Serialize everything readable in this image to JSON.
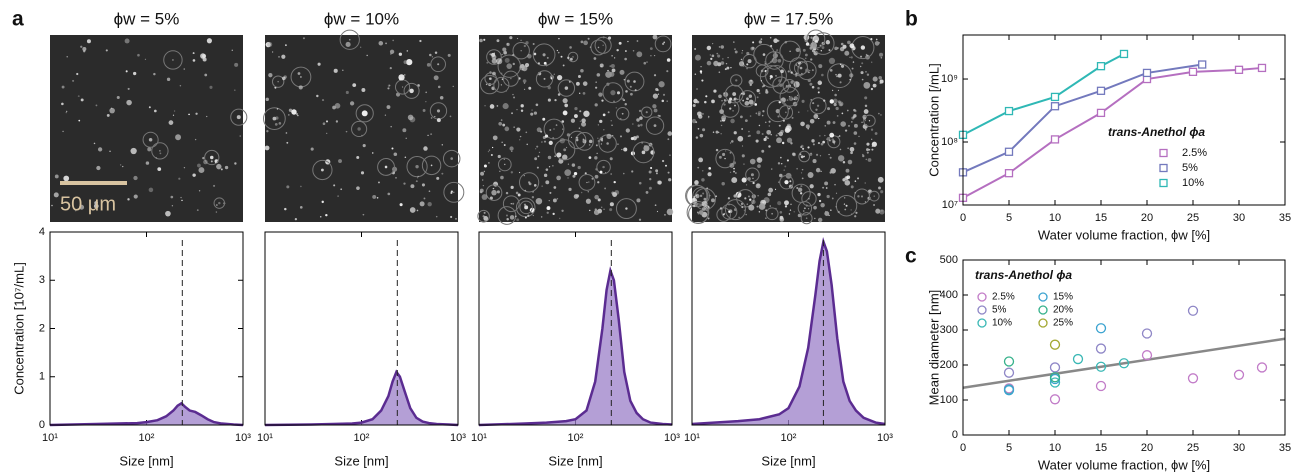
{
  "panel_labels": [
    "a",
    "b",
    "c"
  ],
  "micrographs": [
    {
      "title": "ϕw = 5%"
    },
    {
      "title": "ϕw = 10%"
    },
    {
      "title": "ϕw = 15%"
    },
    {
      "title": "ϕw = 17.5%"
    }
  ],
  "scale_bar": "50 μm",
  "chart_data": [
    {
      "type": "area",
      "log_x": true,
      "x": [
        10,
        30,
        50,
        80,
        100,
        130,
        160,
        190,
        210,
        230,
        250,
        280,
        320,
        370,
        430,
        500,
        600,
        800,
        1000
      ],
      "series": [
        {
          "color": "#5b2c91",
          "values": [
            0,
            0.02,
            0.03,
            0.04,
            0.06,
            0.1,
            0.18,
            0.3,
            0.4,
            0.45,
            0.38,
            0.3,
            0.27,
            0.2,
            0.12,
            0.06,
            0.03,
            0.01,
            0
          ]
        }
      ],
      "mean": 235,
      "xlim": [
        10,
        1000
      ],
      "xticks": [
        {
          "value": 10,
          "label": "10¹"
        },
        {
          "value": 100,
          "label": "10²"
        },
        {
          "value": 1000,
          "label": "10³"
        }
      ],
      "ylim": [
        0,
        4
      ],
      "yticks": [
        0,
        1,
        2,
        3,
        4
      ],
      "x_label": "Size [nm]",
      "y_label": "Concentration [10⁷/mL]"
    },
    {
      "type": "area",
      "log_x": true,
      "x": [
        10,
        30,
        50,
        80,
        100,
        130,
        160,
        190,
        210,
        230,
        250,
        280,
        320,
        370,
        430,
        500,
        600,
        800,
        1000
      ],
      "series": [
        {
          "color": "#5b2c91",
          "values": [
            0,
            0.01,
            0.02,
            0.03,
            0.05,
            0.12,
            0.3,
            0.6,
            0.9,
            1.1,
            1.0,
            0.7,
            0.35,
            0.15,
            0.07,
            0.04,
            0.02,
            0.01,
            0
          ]
        }
      ],
      "mean": 235,
      "xlim": [
        10,
        1000
      ],
      "xticks": [
        {
          "value": 10,
          "label": "10¹"
        },
        {
          "value": 100,
          "label": "10²"
        },
        {
          "value": 1000,
          "label": "10³"
        }
      ],
      "ylim": [
        0,
        4
      ],
      "x_label": "Size [nm]"
    },
    {
      "type": "area",
      "log_x": true,
      "x": [
        10,
        30,
        50,
        80,
        100,
        130,
        160,
        190,
        210,
        230,
        250,
        280,
        320,
        370,
        430,
        500,
        600,
        800,
        1000
      ],
      "series": [
        {
          "color": "#5b2c91",
          "values": [
            0,
            0.03,
            0.05,
            0.08,
            0.12,
            0.3,
            0.9,
            2.0,
            2.8,
            3.2,
            3.0,
            2.2,
            1.1,
            0.5,
            0.25,
            0.12,
            0.05,
            0.02,
            0.01
          ]
        }
      ],
      "mean": 235,
      "xlim": [
        10,
        1000
      ],
      "xticks": [
        {
          "value": 10,
          "label": "10¹"
        },
        {
          "value": 100,
          "label": "10²"
        },
        {
          "value": 1000,
          "label": "10³"
        }
      ],
      "ylim": [
        0,
        4
      ],
      "x_label": "Size [nm]"
    },
    {
      "type": "area",
      "log_x": true,
      "x": [
        10,
        30,
        50,
        80,
        100,
        130,
        160,
        190,
        210,
        230,
        250,
        280,
        320,
        370,
        430,
        500,
        600,
        800,
        1000
      ],
      "series": [
        {
          "color": "#5b2c91",
          "values": [
            0.02,
            0.08,
            0.12,
            0.22,
            0.35,
            0.8,
            1.6,
            2.7,
            3.4,
            3.8,
            3.6,
            2.9,
            1.8,
            0.9,
            0.5,
            0.3,
            0.15,
            0.05,
            0.02
          ]
        }
      ],
      "mean": 230,
      "xlim": [
        10,
        1000
      ],
      "xticks": [
        {
          "value": 10,
          "label": "10¹"
        },
        {
          "value": 100,
          "label": "10²"
        },
        {
          "value": 1000,
          "label": "10³"
        }
      ],
      "ylim": [
        0,
        4
      ],
      "x_label": "Size [nm]"
    },
    {
      "type": "line",
      "log_y": true,
      "legend_title": "trans-Anethol ϕa",
      "legend": "right",
      "series": [
        {
          "name": "2.5%",
          "color": "#b56fc0",
          "x": [
            0,
            5,
            10,
            15,
            20,
            25,
            30,
            32.5
          ],
          "values": [
            13000000,
            32000000,
            110000000,
            290000000,
            1000000000,
            1300000000,
            1400000000,
            1500000000
          ]
        },
        {
          "name": "5%",
          "color": "#7379bd",
          "x": [
            0,
            5,
            10,
            15,
            20,
            26
          ],
          "values": [
            33000000,
            70000000,
            370000000,
            650000000,
            1250000000,
            1700000000
          ]
        },
        {
          "name": "10%",
          "color": "#2fb8b5",
          "x": [
            0,
            5,
            10,
            15,
            17.5
          ],
          "values": [
            130000000,
            310000000,
            520000000,
            1600000000,
            2500000000
          ]
        }
      ],
      "xlim": [
        0,
        35
      ],
      "xticks": [
        0,
        5,
        10,
        15,
        20,
        25,
        30,
        35
      ],
      "ylim": [
        10000000,
        5000000000
      ],
      "yticks": [
        {
          "value": 10000000,
          "label": "10⁷"
        },
        {
          "value": 100000000,
          "label": "10⁸"
        },
        {
          "value": 1000000000,
          "label": "10⁹"
        }
      ],
      "x_label": "Water volume fraction, ϕw [%]",
      "y_label": "Concentration [/mL]"
    },
    {
      "type": "scatter",
      "legend_title": "trans-Anethol ϕa",
      "legend": "upper-left",
      "series": [
        {
          "name": "2.5%",
          "color": "#c27cc8",
          "x": [
            5,
            10,
            15,
            20,
            25,
            30,
            32.5
          ],
          "values": [
            133,
            102,
            140,
            228,
            162,
            172,
            193
          ]
        },
        {
          "name": "5%",
          "color": "#8e86c6",
          "x": [
            5,
            10,
            15,
            20,
            25
          ],
          "values": [
            178,
            193,
            247,
            290,
            355
          ]
        },
        {
          "name": "10%",
          "color": "#3ab8b5",
          "x": [
            5,
            10,
            12.5,
            15,
            17.5
          ],
          "values": [
            130,
            150,
            217,
            195,
            205
          ]
        },
        {
          "name": "15%",
          "color": "#3ba3d0",
          "x": [
            5,
            10,
            15
          ],
          "values": [
            128,
            160,
            305
          ]
        },
        {
          "name": "20%",
          "color": "#34b18a",
          "x": [
            5,
            10
          ],
          "values": [
            210,
            165
          ]
        },
        {
          "name": "25%",
          "color": "#a3a832",
          "x": [
            10
          ],
          "values": [
            258
          ]
        }
      ],
      "xlim": [
        0,
        35
      ],
      "xticks": [
        0,
        5,
        10,
        15,
        20,
        25,
        30,
        35
      ],
      "ylim": [
        0,
        500
      ],
      "yticks": [
        0,
        100,
        200,
        300,
        400,
        500
      ],
      "x_label": "Water volume fraction, ϕw [%]",
      "y_label": "Mean diameter [nm]"
    }
  ]
}
